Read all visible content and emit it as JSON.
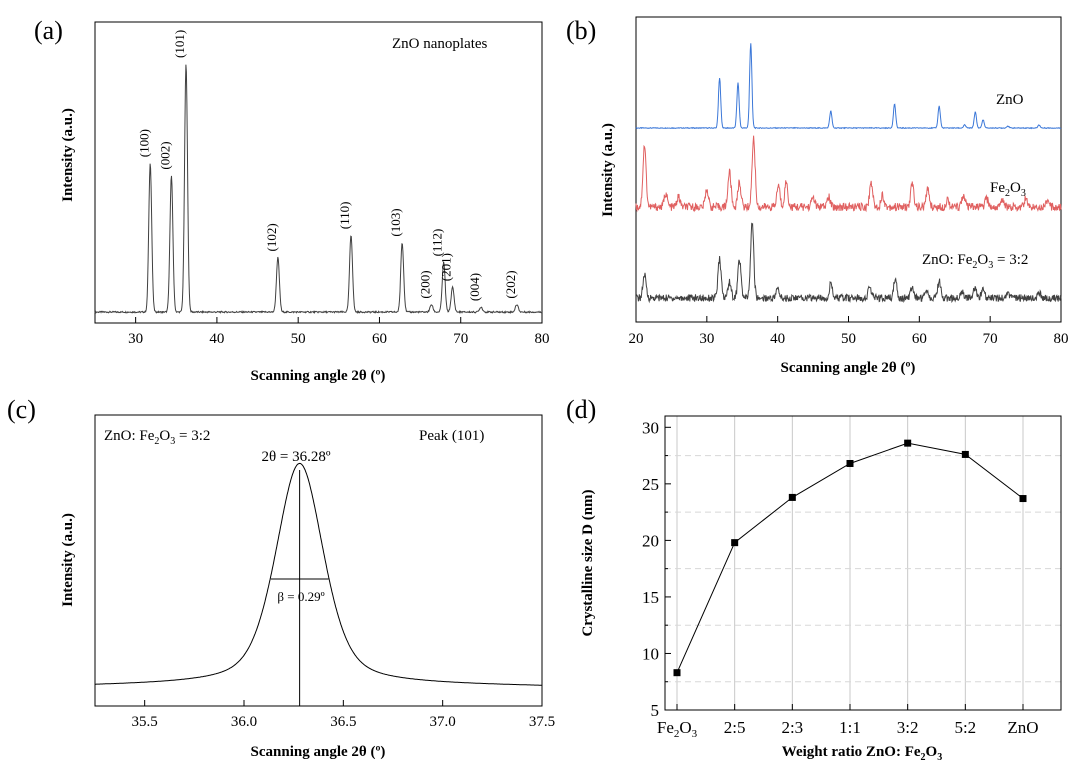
{
  "panels": {
    "a": {
      "letter": "(a)"
    },
    "b": {
      "letter": "(b)"
    },
    "c": {
      "letter": "(c)"
    },
    "d": {
      "letter": "(d)"
    }
  },
  "chart_data": [
    {
      "id": "a",
      "type": "line",
      "title": "",
      "annotation": "ZnO nanoplates",
      "xlabel": "Scanning angle 2θ (º)",
      "ylabel": "Intensity (a.u.)",
      "xlim": [
        25,
        80
      ],
      "xticks": [
        "30",
        "40",
        "50",
        "60",
        "70",
        "80"
      ],
      "y_ticks_shown": false,
      "line_color": "#404040",
      "baseline": 0.02,
      "peaks": [
        {
          "x": 31.8,
          "height": 0.6,
          "label": "(100)"
        },
        {
          "x": 34.4,
          "height": 0.55,
          "label": "(002)"
        },
        {
          "x": 36.2,
          "height": 1.0,
          "label": "(101)"
        },
        {
          "x": 47.5,
          "height": 0.22,
          "label": "(102)"
        },
        {
          "x": 56.5,
          "height": 0.31,
          "label": "(110)"
        },
        {
          "x": 62.8,
          "height": 0.28,
          "label": "(103)"
        },
        {
          "x": 66.4,
          "height": 0.03,
          "label": "(200)"
        },
        {
          "x": 67.9,
          "height": 0.2,
          "label": "(112)"
        },
        {
          "x": 69.0,
          "height": 0.1,
          "label": "(201)"
        },
        {
          "x": 72.5,
          "height": 0.02,
          "label": "(004)"
        },
        {
          "x": 76.9,
          "height": 0.03,
          "label": "(202)"
        }
      ]
    },
    {
      "id": "b",
      "type": "line",
      "xlabel": "Scanning angle 2θ (º)",
      "ylabel": "Intensity (a.u.)",
      "xlim": [
        20,
        80
      ],
      "xticks": [
        "20",
        "30",
        "40",
        "50",
        "60",
        "70",
        "80"
      ],
      "y_ticks_shown": false,
      "series": [
        {
          "name": "ZnO",
          "color": "#3c78d8",
          "peaks": [
            [
              31.8,
              0.5
            ],
            [
              34.4,
              0.45
            ],
            [
              36.2,
              0.85
            ],
            [
              47.5,
              0.17
            ],
            [
              56.5,
              0.24
            ],
            [
              62.8,
              0.22
            ],
            [
              66.4,
              0.03
            ],
            [
              67.9,
              0.16
            ],
            [
              69.0,
              0.08
            ],
            [
              72.5,
              0.02
            ],
            [
              76.9,
              0.03
            ]
          ]
        },
        {
          "name_prefix": "Fe",
          "name_sub1": "2",
          "name_mid": "O",
          "name_sub2": "3",
          "color": "#e06060",
          "peaks": [
            [
              21.2,
              0.62
            ],
            [
              24.2,
              0.14
            ],
            [
              26.0,
              0.1
            ],
            [
              30.0,
              0.18
            ],
            [
              33.2,
              0.35
            ],
            [
              34.6,
              0.25
            ],
            [
              36.6,
              0.68
            ],
            [
              40.1,
              0.22
            ],
            [
              41.2,
              0.25
            ],
            [
              45.0,
              0.1
            ],
            [
              47.2,
              0.1
            ],
            [
              53.2,
              0.25
            ],
            [
              54.8,
              0.12
            ],
            [
              59.0,
              0.23
            ],
            [
              61.2,
              0.18
            ],
            [
              64.0,
              0.08
            ],
            [
              66.2,
              0.12
            ],
            [
              69.5,
              0.08
            ],
            [
              71.8,
              0.08
            ],
            [
              75.0,
              0.08
            ],
            [
              78.0,
              0.06
            ]
          ]
        },
        {
          "name_prefix": "ZnO: Fe",
          "name_sub1": "2",
          "name_mid": "O",
          "name_sub2": "3",
          "name_suffix": " = 3:2",
          "color": "#404040",
          "peaks": [
            [
              21.2,
              0.25
            ],
            [
              31.8,
              0.42
            ],
            [
              33.2,
              0.18
            ],
            [
              34.6,
              0.42
            ],
            [
              36.4,
              0.82
            ],
            [
              40.0,
              0.1
            ],
            [
              47.5,
              0.15
            ],
            [
              53.0,
              0.12
            ],
            [
              56.6,
              0.2
            ],
            [
              59.0,
              0.12
            ],
            [
              61.0,
              0.1
            ],
            [
              62.8,
              0.18
            ],
            [
              66.0,
              0.08
            ],
            [
              67.9,
              0.12
            ],
            [
              69.0,
              0.08
            ],
            [
              72.5,
              0.05
            ],
            [
              76.9,
              0.05
            ]
          ]
        }
      ]
    },
    {
      "id": "c",
      "type": "line",
      "xlabel": "Scanning angle 2θ (º)",
      "ylabel": "Intensity (a.u.)",
      "xlim": [
        35.25,
        37.5
      ],
      "xticks": [
        "35.5",
        "36.0",
        "36.5",
        "37.0",
        "37.5"
      ],
      "y_ticks_shown": false,
      "sample_prefix": "ZnO: Fe",
      "sample_sub1": "2",
      "sample_mid": "O",
      "sample_sub2": "3",
      "sample_suffix": " = 3:2",
      "peak_label": "Peak (101)",
      "peak_position_label": "2θ = 36.28º",
      "fwhm_label": "β = 0.29º",
      "peak_x": 36.28,
      "fwhm": 0.29
    },
    {
      "id": "d",
      "type": "line",
      "xlabel_prefix": "Weight ratio ZnO: Fe",
      "xlabel_sub1": "2",
      "xlabel_mid": "O",
      "xlabel_sub2": "3",
      "ylabel": "Crystalline size D (nm)",
      "categories": [
        "Fe2O3",
        "2:5",
        "2:3",
        "1:1",
        "3:2",
        "5:2",
        "ZnO"
      ],
      "first_category_parts": {
        "a": "Fe",
        "b": "2",
        "c": "O",
        "d": "3"
      },
      "values": [
        8.3,
        19.8,
        23.8,
        26.8,
        28.6,
        27.6,
        23.7
      ],
      "ylim": [
        5,
        31
      ],
      "yticks": [
        "5",
        "10",
        "15",
        "20",
        "25",
        "30"
      ],
      "grid": true,
      "marker": "square"
    }
  ]
}
